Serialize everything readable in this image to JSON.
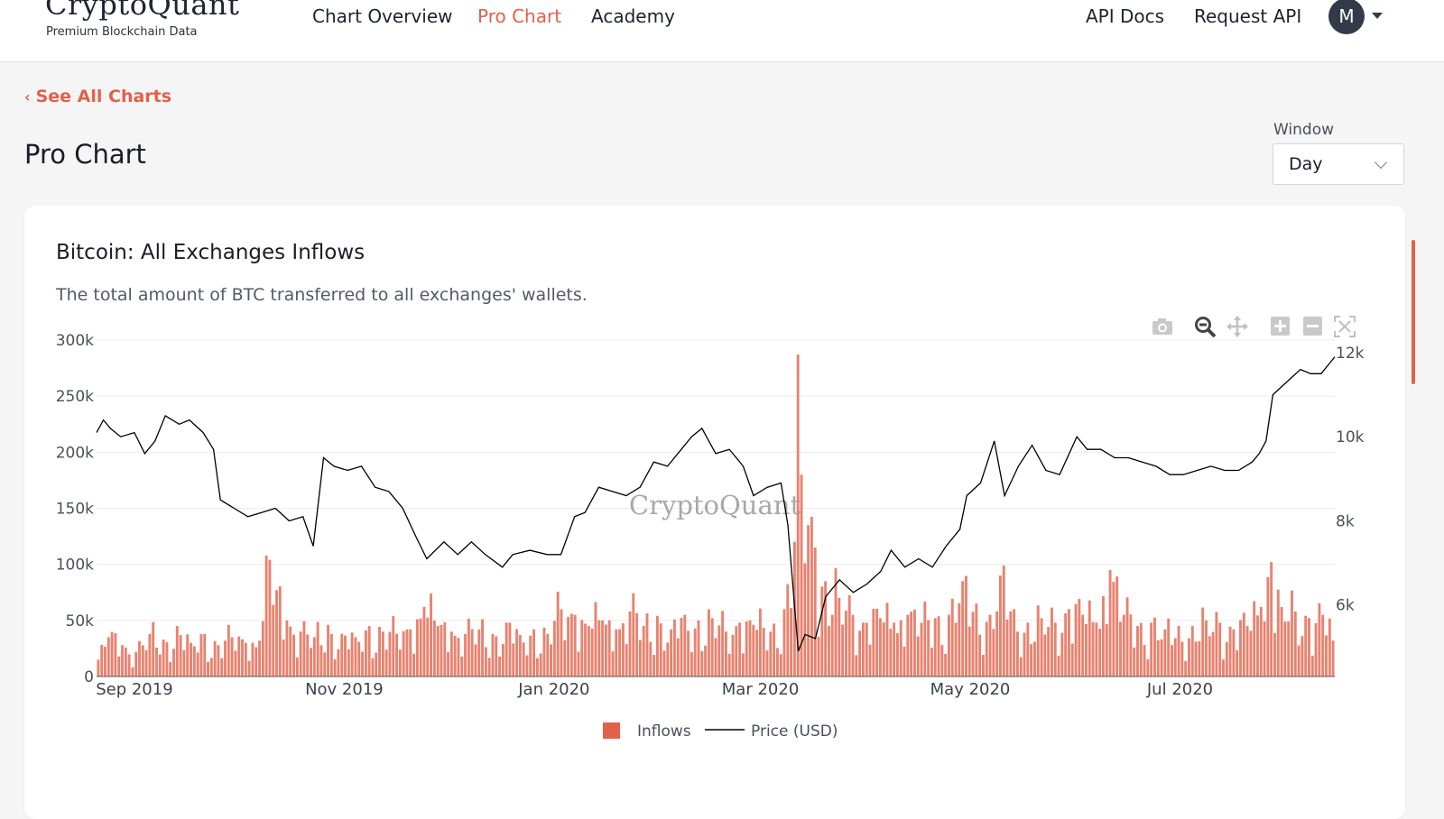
{
  "header": {
    "logo": "CryptoQuant",
    "tagline": "Premium Blockchain Data",
    "nav": [
      "Chart Overview",
      "Pro Chart",
      "Academy"
    ],
    "active_nav": "Pro Chart",
    "right_links": [
      "API Docs",
      "Request API"
    ],
    "avatar_initial": "M"
  },
  "page": {
    "back_link": "See All Charts",
    "title": "Pro Chart",
    "window_label": "Window",
    "window_value": "Day"
  },
  "chart_card": {
    "title": "Bitcoin: All Exchanges Inflows",
    "subtitle": "The total amount of BTC transferred to all exchanges' wallets.",
    "watermark": "CryptoQuant",
    "modebar_icons": [
      "camera-icon",
      "zoom-icon",
      "pan-icon",
      "zoom-in-icon",
      "zoom-out-icon",
      "autoscale-icon"
    ]
  },
  "colors": {
    "accent": "#e2614a",
    "bar": "#e8826f",
    "line": "#000000"
  },
  "chart_data": {
    "type": "bar",
    "x_start": "2019-08-21",
    "x_end": "2020-08-15",
    "x_ticks": [
      {
        "label": "Sep 2019",
        "date": "2019-09-01"
      },
      {
        "label": "Nov 2019",
        "date": "2019-11-01"
      },
      {
        "label": "Jan 2020",
        "date": "2020-01-01"
      },
      {
        "label": "Mar 2020",
        "date": "2020-03-01"
      },
      {
        "label": "May 2020",
        "date": "2020-05-01"
      },
      {
        "label": "Jul 2020",
        "date": "2020-07-01"
      }
    ],
    "y_left": {
      "range": [
        0,
        300000
      ],
      "ticks": [
        0,
        50000,
        100000,
        150000,
        200000,
        250000,
        300000
      ],
      "tick_labels": [
        "0",
        "50k",
        "100k",
        "150k",
        "200k",
        "250k",
        "300k"
      ]
    },
    "y_right": {
      "range": [
        4300,
        12300
      ],
      "ticks": [
        6000,
        8000,
        10000,
        12000
      ],
      "tick_labels": [
        "6k",
        "8k",
        "10k",
        "12k"
      ]
    },
    "grid": true,
    "legend_position": "bottom-center",
    "series": [
      {
        "name": "Inflows",
        "type": "bar",
        "points": [
          [
            "2019-08-21",
            15000
          ],
          [
            "2019-08-24",
            35000
          ],
          [
            "2019-08-28",
            28000
          ],
          [
            "2019-09-01",
            22000
          ],
          [
            "2019-09-05",
            38000
          ],
          [
            "2019-09-09",
            33000
          ],
          [
            "2019-09-13",
            45000
          ],
          [
            "2019-09-17",
            30000
          ],
          [
            "2019-09-21",
            38000
          ],
          [
            "2019-09-25",
            28000
          ],
          [
            "2019-09-29",
            35000
          ],
          [
            "2019-10-03",
            30000
          ],
          [
            "2019-10-07",
            32000
          ],
          [
            "2019-10-10",
            104000
          ],
          [
            "2019-10-12",
            77000
          ],
          [
            "2019-10-15",
            50000
          ],
          [
            "2019-10-19",
            40000
          ],
          [
            "2019-10-23",
            35000
          ],
          [
            "2019-10-27",
            46000
          ],
          [
            "2019-10-31",
            38000
          ],
          [
            "2019-11-04",
            35000
          ],
          [
            "2019-11-08",
            45000
          ],
          [
            "2019-11-12",
            40000
          ],
          [
            "2019-11-16",
            38000
          ],
          [
            "2019-11-20",
            42000
          ],
          [
            "2019-11-24",
            62000
          ],
          [
            "2019-11-28",
            45000
          ],
          [
            "2019-12-02",
            40000
          ],
          [
            "2019-12-06",
            38000
          ],
          [
            "2019-12-10",
            42000
          ],
          [
            "2019-12-14",
            38000
          ],
          [
            "2019-12-18",
            48000
          ],
          [
            "2019-12-22",
            37000
          ],
          [
            "2019-12-26",
            42000
          ],
          [
            "2019-12-30",
            38000
          ],
          [
            "2020-01-03",
            60000
          ],
          [
            "2020-01-07",
            55000
          ],
          [
            "2020-01-11",
            45000
          ],
          [
            "2020-01-15",
            50000
          ],
          [
            "2020-01-19",
            42000
          ],
          [
            "2020-01-23",
            58000
          ],
          [
            "2020-01-27",
            45000
          ],
          [
            "2020-01-31",
            54000
          ],
          [
            "2020-02-04",
            42000
          ],
          [
            "2020-02-08",
            55000
          ],
          [
            "2020-02-12",
            50000
          ],
          [
            "2020-02-16",
            52000
          ],
          [
            "2020-02-20",
            40000
          ],
          [
            "2020-02-24",
            48000
          ],
          [
            "2020-02-28",
            46000
          ],
          [
            "2020-03-04",
            40000
          ],
          [
            "2020-03-08",
            60000
          ],
          [
            "2020-03-11",
            120000
          ],
          [
            "2020-03-12",
            287000
          ],
          [
            "2020-03-13",
            180000
          ],
          [
            "2020-03-15",
            135000
          ],
          [
            "2020-03-17",
            115000
          ],
          [
            "2020-03-20",
            85000
          ],
          [
            "2020-03-24",
            70000
          ],
          [
            "2020-03-28",
            55000
          ],
          [
            "2020-04-01",
            48000
          ],
          [
            "2020-04-05",
            52000
          ],
          [
            "2020-04-09",
            48000
          ],
          [
            "2020-04-13",
            55000
          ],
          [
            "2020-04-17",
            48000
          ],
          [
            "2020-04-21",
            52000
          ],
          [
            "2020-04-25",
            55000
          ],
          [
            "2020-04-29",
            85000
          ],
          [
            "2020-05-03",
            65000
          ],
          [
            "2020-05-07",
            55000
          ],
          [
            "2020-05-10",
            90000
          ],
          [
            "2020-05-14",
            60000
          ],
          [
            "2020-05-18",
            48000
          ],
          [
            "2020-05-22",
            52000
          ],
          [
            "2020-05-26",
            48000
          ],
          [
            "2020-05-30",
            60000
          ],
          [
            "2020-06-03",
            55000
          ],
          [
            "2020-06-07",
            48000
          ],
          [
            "2020-06-11",
            95000
          ],
          [
            "2020-06-15",
            55000
          ],
          [
            "2020-06-19",
            45000
          ],
          [
            "2020-06-23",
            48000
          ],
          [
            "2020-06-27",
            42000
          ],
          [
            "2020-07-01",
            45000
          ],
          [
            "2020-07-05",
            45000
          ],
          [
            "2020-07-09",
            50000
          ],
          [
            "2020-07-13",
            48000
          ],
          [
            "2020-07-17",
            42000
          ],
          [
            "2020-07-21",
            45000
          ],
          [
            "2020-07-25",
            62000
          ],
          [
            "2020-07-28",
            102000
          ],
          [
            "2020-07-31",
            62000
          ],
          [
            "2020-08-04",
            58000
          ],
          [
            "2020-08-08",
            52000
          ],
          [
            "2020-08-12",
            55000
          ],
          [
            "2020-08-15",
            32000
          ]
        ]
      },
      {
        "name": "Price (USD)",
        "type": "line",
        "points": [
          [
            "2019-08-21",
            10100
          ],
          [
            "2019-08-23",
            10400
          ],
          [
            "2019-08-25",
            10200
          ],
          [
            "2019-08-28",
            10000
          ],
          [
            "2019-09-01",
            10100
          ],
          [
            "2019-09-04",
            9600
          ],
          [
            "2019-09-07",
            9900
          ],
          [
            "2019-09-10",
            10500
          ],
          [
            "2019-09-14",
            10300
          ],
          [
            "2019-09-17",
            10400
          ],
          [
            "2019-09-21",
            10100
          ],
          [
            "2019-09-24",
            9700
          ],
          [
            "2019-09-26",
            8500
          ],
          [
            "2019-09-30",
            8300
          ],
          [
            "2019-10-04",
            8100
          ],
          [
            "2019-10-08",
            8200
          ],
          [
            "2019-10-12",
            8300
          ],
          [
            "2019-10-16",
            8000
          ],
          [
            "2019-10-20",
            8100
          ],
          [
            "2019-10-23",
            7400
          ],
          [
            "2019-10-26",
            9500
          ],
          [
            "2019-10-29",
            9300
          ],
          [
            "2019-11-02",
            9200
          ],
          [
            "2019-11-06",
            9300
          ],
          [
            "2019-11-10",
            8800
          ],
          [
            "2019-11-14",
            8700
          ],
          [
            "2019-11-18",
            8300
          ],
          [
            "2019-11-22",
            7600
          ],
          [
            "2019-11-25",
            7100
          ],
          [
            "2019-11-30",
            7500
          ],
          [
            "2019-12-04",
            7200
          ],
          [
            "2019-12-08",
            7500
          ],
          [
            "2019-12-12",
            7200
          ],
          [
            "2019-12-17",
            6900
          ],
          [
            "2019-12-20",
            7200
          ],
          [
            "2019-12-25",
            7300
          ],
          [
            "2019-12-30",
            7200
          ],
          [
            "2020-01-03",
            7200
          ],
          [
            "2020-01-07",
            8100
          ],
          [
            "2020-01-10",
            8200
          ],
          [
            "2020-01-14",
            8800
          ],
          [
            "2020-01-18",
            8700
          ],
          [
            "2020-01-22",
            8600
          ],
          [
            "2020-01-26",
            8800
          ],
          [
            "2020-01-30",
            9400
          ],
          [
            "2020-02-03",
            9300
          ],
          [
            "2020-02-07",
            9700
          ],
          [
            "2020-02-10",
            10000
          ],
          [
            "2020-02-13",
            10200
          ],
          [
            "2020-02-17",
            9600
          ],
          [
            "2020-02-21",
            9700
          ],
          [
            "2020-02-25",
            9300
          ],
          [
            "2020-02-28",
            8600
          ],
          [
            "2020-03-03",
            8800
          ],
          [
            "2020-03-07",
            8900
          ],
          [
            "2020-03-09",
            7900
          ],
          [
            "2020-03-12",
            4900
          ],
          [
            "2020-03-14",
            5300
          ],
          [
            "2020-03-17",
            5200
          ],
          [
            "2020-03-20",
            6200
          ],
          [
            "2020-03-24",
            6600
          ],
          [
            "2020-03-28",
            6300
          ],
          [
            "2020-04-01",
            6500
          ],
          [
            "2020-04-05",
            6800
          ],
          [
            "2020-04-08",
            7300
          ],
          [
            "2020-04-12",
            6900
          ],
          [
            "2020-04-16",
            7100
          ],
          [
            "2020-04-20",
            6900
          ],
          [
            "2020-04-24",
            7400
          ],
          [
            "2020-04-28",
            7800
          ],
          [
            "2020-04-30",
            8600
          ],
          [
            "2020-05-04",
            8900
          ],
          [
            "2020-05-08",
            9900
          ],
          [
            "2020-05-11",
            8600
          ],
          [
            "2020-05-15",
            9300
          ],
          [
            "2020-05-19",
            9800
          ],
          [
            "2020-05-23",
            9200
          ],
          [
            "2020-05-27",
            9100
          ],
          [
            "2020-06-01",
            10000
          ],
          [
            "2020-06-04",
            9700
          ],
          [
            "2020-06-08",
            9700
          ],
          [
            "2020-06-12",
            9500
          ],
          [
            "2020-06-16",
            9500
          ],
          [
            "2020-06-20",
            9400
          ],
          [
            "2020-06-24",
            9300
          ],
          [
            "2020-06-28",
            9100
          ],
          [
            "2020-07-02",
            9100
          ],
          [
            "2020-07-06",
            9200
          ],
          [
            "2020-07-10",
            9300
          ],
          [
            "2020-07-14",
            9200
          ],
          [
            "2020-07-18",
            9200
          ],
          [
            "2020-07-22",
            9400
          ],
          [
            "2020-07-24",
            9600
          ],
          [
            "2020-07-26",
            9900
          ],
          [
            "2020-07-28",
            11000
          ],
          [
            "2020-08-01",
            11300
          ],
          [
            "2020-08-05",
            11600
          ],
          [
            "2020-08-08",
            11500
          ],
          [
            "2020-08-11",
            11500
          ],
          [
            "2020-08-13",
            11700
          ],
          [
            "2020-08-15",
            11900
          ]
        ]
      }
    ]
  }
}
